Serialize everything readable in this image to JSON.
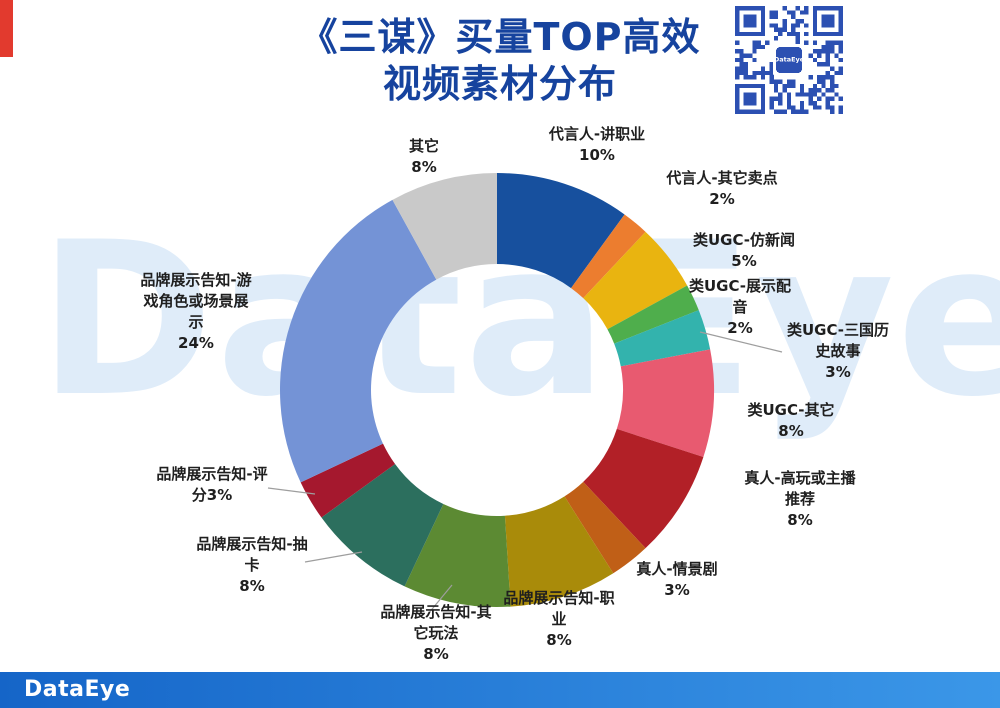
{
  "page": {
    "title_line1": "《三谋》买量TOP高效",
    "title_line2": "视频素材分布",
    "watermark": "DataEye",
    "footer_logo": "DataEye",
    "qr_center_label": "DataEye"
  },
  "colors": {
    "title": "#16439e",
    "watermark": "#dfecf9",
    "footer_bg_left": "#1565c8",
    "footer_bg_right": "#3b97e8",
    "qr_blue": "#2c50b2",
    "accent_red": "#e23a2e",
    "label_text": "#1f1f1f",
    "leader_line": "#9e9e9e"
  },
  "chart_data": {
    "type": "pie",
    "donut": true,
    "title": "《三谋》买量TOP高效视频素材分布",
    "start_angle_deg": 0,
    "direction": "clockwise",
    "inner_radius_ratio": 0.58,
    "legend": "none",
    "total": 100,
    "segments": [
      {
        "label": "代言人-讲职业",
        "value": 10,
        "pct_label": "10%",
        "color": "#17509e",
        "label_lines": [
          "代言人-讲职业",
          "10%"
        ]
      },
      {
        "label": "代言人-其它卖点",
        "value": 2,
        "pct_label": "2%",
        "color": "#ec7d2f",
        "label_lines": [
          "代言人-其它卖点",
          "2%"
        ]
      },
      {
        "label": "类UGC-仿新闻",
        "value": 5,
        "pct_label": "5%",
        "color": "#e9b410",
        "label_lines": [
          "类UGC-仿新闻",
          "5%"
        ]
      },
      {
        "label": "类UGC-展示配音",
        "value": 2,
        "pct_label": "2%",
        "color": "#4fae4c",
        "label_lines": [
          "类UGC-展示配",
          "音",
          "2%"
        ]
      },
      {
        "label": "类UGC-三国历史故事",
        "value": 3,
        "pct_label": "3%",
        "color": "#33b3ad",
        "label_lines": [
          "类UGC-三国历",
          "史故事",
          "3%"
        ]
      },
      {
        "label": "类UGC-其它",
        "value": 8,
        "pct_label": "8%",
        "color": "#e85a70",
        "label_lines": [
          "类UGC-其它",
          "8%"
        ]
      },
      {
        "label": "真人-高玩或主播推荐",
        "value": 8,
        "pct_label": "8%",
        "color": "#b22027",
        "label_lines": [
          "真人-高玩或主播",
          "推荐",
          "8%"
        ]
      },
      {
        "label": "真人-情景剧",
        "value": 3,
        "pct_label": "3%",
        "color": "#c05f17",
        "label_lines": [
          "真人-情景剧",
          "3%"
        ]
      },
      {
        "label": "品牌展示告知-职业",
        "value": 8,
        "pct_label": "8%",
        "color": "#a98b0a",
        "label_lines": [
          "品牌展示告知-职",
          "业",
          "8%"
        ]
      },
      {
        "label": "品牌展示告知-其它玩法",
        "value": 8,
        "pct_label": "8%",
        "color": "#5c8a33",
        "label_lines": [
          "品牌展示告知-其",
          "它玩法",
          "8%"
        ]
      },
      {
        "label": "品牌展示告知-抽卡",
        "value": 8,
        "pct_label": "8%",
        "color": "#2c6f5e",
        "label_lines": [
          "品牌展示告知-抽",
          "卡",
          "8%"
        ]
      },
      {
        "label": "品牌展示告知-评分",
        "value": 3,
        "pct_label": "3%",
        "color": "#a5182e",
        "label_lines": [
          "品牌展示告知-评",
          "分3%"
        ]
      },
      {
        "label": "品牌展示告知-游戏角色或场景展示",
        "value": 24,
        "pct_label": "24%",
        "color": "#7493d6",
        "label_lines": [
          "品牌展示告知-游",
          "戏角色或场景展",
          "示",
          "24%"
        ]
      },
      {
        "label": "其它",
        "value": 8,
        "pct_label": "8%",
        "color": "#c9c9c9",
        "label_lines": [
          "其它",
          "8%"
        ]
      }
    ]
  }
}
